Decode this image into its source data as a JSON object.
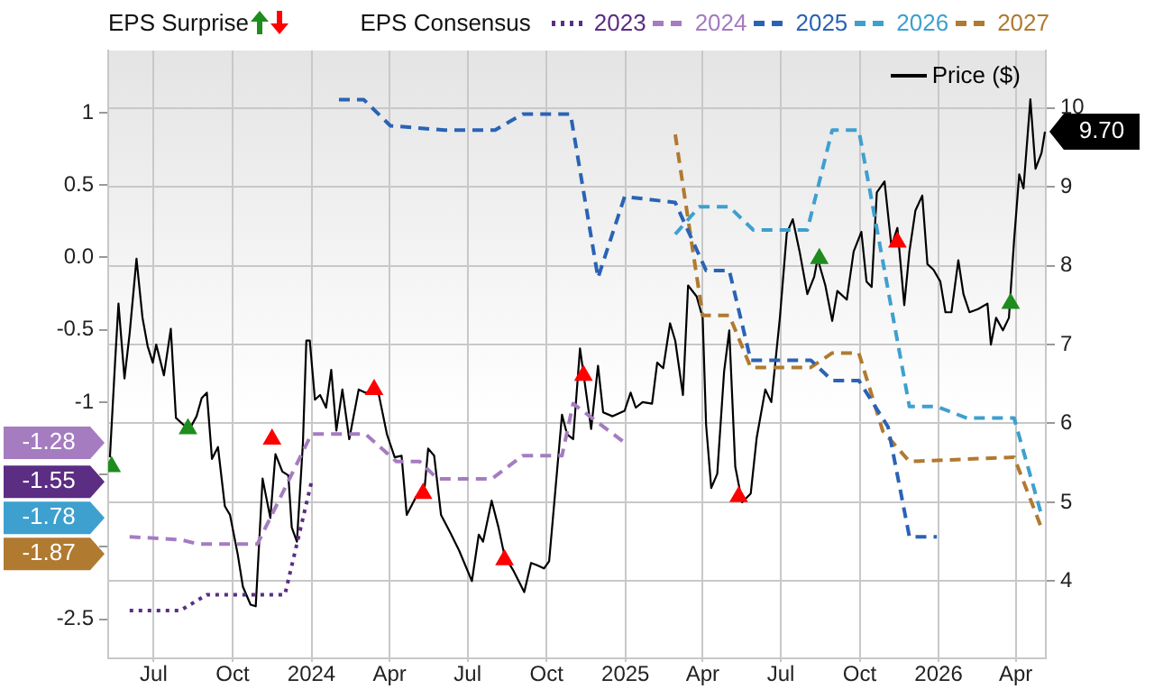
{
  "chart_data": {
    "type": "line",
    "legend": "top",
    "grid": true,
    "marker": "none",
    "annotations": [
      "EPS Surprise",
      "-1.28",
      "-1.55",
      "-1.78",
      "-1.87"
    ],
    "legend_title": "EPS Consensus",
    "xlim": [
      "2023-05-09",
      "2026-05-06"
    ],
    "xticks": [
      {
        "value": "2023-07-01",
        "label": "Jul"
      },
      {
        "value": "2023-10-01",
        "label": "Oct"
      },
      {
        "value": "2024-01-01",
        "label": "2024"
      },
      {
        "value": "2024-04-01",
        "label": "Apr"
      },
      {
        "value": "2024-07-01",
        "label": "Jul"
      },
      {
        "value": "2024-10-01",
        "label": "Oct"
      },
      {
        "value": "2025-01-01",
        "label": "2025"
      },
      {
        "value": "2025-04-01",
        "label": "Apr"
      },
      {
        "value": "2025-07-01",
        "label": "Jul"
      },
      {
        "value": "2025-10-01",
        "label": "Oct"
      },
      {
        "value": "2026-01-01",
        "label": "2026"
      },
      {
        "value": "2026-04-01",
        "label": "Apr"
      }
    ],
    "ylim": [
      -2.77,
      1.43
    ],
    "yticks": [
      1,
      0.5,
      {
        "value": 0,
        "label": "0.0"
      },
      -0.5,
      -1,
      {
        "value": -1.5,
        "label": null
      },
      {
        "value": -2,
        "label": null
      },
      -2.5
    ],
    "y2lim": [
      3.02,
      10.73
    ],
    "y2ticks": [
      4,
      5,
      6,
      7,
      8,
      9,
      10
    ],
    "series": [
      {
        "name": "2023",
        "color": "#5b2d83",
        "line_style": "dotted",
        "x": [
          "2023-06-03",
          "2023-08-01",
          "2023-09-01",
          "2023-12-01",
          "2023-12-11",
          "2024-01-01"
        ],
        "values": [
          -2.44,
          -2.44,
          -2.33,
          -2.33,
          -2.08,
          -1.55
        ]
      },
      {
        "name": "2024",
        "color": "#a57cc0",
        "line_style": "dashed",
        "x": [
          "2023-06-03",
          "2023-08-01",
          "2023-08-22",
          "2023-10-30",
          "2024-01-01",
          "2024-03-04",
          "2024-04-09",
          "2024-05-06",
          "2024-05-27",
          "2024-07-29",
          "2024-09-03",
          "2024-10-19",
          "2024-11-01",
          "2024-12-31"
        ],
        "values": [
          -1.93,
          -1.95,
          -1.98,
          -1.98,
          -1.22,
          -1.22,
          -1.41,
          -1.41,
          -1.53,
          -1.53,
          -1.37,
          -1.37,
          -1.01,
          -1.28
        ]
      },
      {
        "name": "2025",
        "color": "#2a63b5",
        "line_style": "dashed",
        "x": [
          "2024-02-02",
          "2024-03-02",
          "2024-04-02",
          "2024-06-04",
          "2024-08-02",
          "2024-09-03",
          "2024-10-29",
          "2024-11-30",
          "2024-12-31",
          "2025-02-28",
          "2025-04-05",
          "2025-05-02",
          "2025-05-27",
          "2025-08-05",
          "2025-08-30",
          "2025-09-30",
          "2025-11-03",
          "2025-11-28",
          "2025-12-30"
        ],
        "values": [
          1.09,
          1.09,
          0.91,
          0.88,
          0.88,
          0.99,
          0.99,
          -0.14,
          0.42,
          0.38,
          -0.09,
          -0.09,
          -0.71,
          -0.71,
          -0.85,
          -0.85,
          -1.17,
          -1.93,
          -1.93
        ]
      },
      {
        "name": "2026",
        "color": "#3ea0cf",
        "line_style": "dashed",
        "x": [
          "2025-02-28",
          "2025-03-28",
          "2025-05-02",
          "2025-05-30",
          "2025-08-01",
          "2025-08-30",
          "2025-09-30",
          "2025-11-28",
          "2025-12-30",
          "2026-02-03",
          "2026-03-30",
          "2026-05-01"
        ],
        "values": [
          0.16,
          0.35,
          0.35,
          0.19,
          0.19,
          0.88,
          0.88,
          -1.03,
          -1.03,
          -1.11,
          -1.11,
          -1.78
        ]
      },
      {
        "name": "2027",
        "color": "#b07a30",
        "line_style": "dashed",
        "x": [
          "2025-02-28",
          "2025-04-01",
          "2025-05-02",
          "2025-05-27",
          "2025-08-05",
          "2025-08-30",
          "2025-09-30",
          "2025-10-28",
          "2025-11-28",
          "2026-03-30",
          "2026-05-01"
        ],
        "values": [
          0.85,
          -0.4,
          -0.4,
          -0.76,
          -0.76,
          -0.66,
          -0.66,
          -1.2,
          -1.41,
          -1.38,
          -1.87
        ]
      },
      {
        "name": "Price ($)",
        "color": "#000000",
        "axis": "y2",
        "line_style": "solid",
        "x": [
          "2023-05-11",
          "2023-05-17",
          "2023-05-21",
          "2023-05-28",
          "2023-06-03",
          "2023-06-11",
          "2023-06-18",
          "2023-06-24",
          "2023-06-30",
          "2023-07-04",
          "2023-07-13",
          "2023-07-21",
          "2023-07-27",
          "2023-08-05",
          "2023-08-13",
          "2023-08-20",
          "2023-08-26",
          "2023-09-01",
          "2023-09-07",
          "2023-09-14",
          "2023-09-22",
          "2023-09-28",
          "2023-10-07",
          "2023-10-13",
          "2023-10-22",
          "2023-10-28",
          "2023-11-05",
          "2023-11-14",
          "2023-11-20",
          "2023-11-28",
          "2023-12-05",
          "2023-12-09",
          "2023-12-15",
          "2023-12-22",
          "2023-12-26",
          "2023-12-30",
          "2024-01-05",
          "2024-01-11",
          "2024-01-18",
          "2024-01-24",
          "2024-01-30",
          "2024-02-06",
          "2024-02-14",
          "2024-02-25",
          "2024-03-04",
          "2024-03-19",
          "2024-03-29",
          "2024-04-07",
          "2024-04-15",
          "2024-04-21",
          "2024-05-02",
          "2024-05-12",
          "2024-05-16",
          "2024-05-23",
          "2024-05-31",
          "2024-06-11",
          "2024-06-21",
          "2024-07-06",
          "2024-07-14",
          "2024-07-19",
          "2024-07-29",
          "2024-08-06",
          "2024-08-13",
          "2024-08-23",
          "2024-09-05",
          "2024-09-13",
          "2024-09-20",
          "2024-09-28",
          "2024-10-04",
          "2024-10-19",
          "2024-10-25",
          "2024-11-01",
          "2024-11-09",
          "2024-11-22",
          "2024-11-30",
          "2024-12-06",
          "2024-12-17",
          "2024-12-31",
          "2025-01-07",
          "2025-01-13",
          "2025-01-21",
          "2025-02-01",
          "2025-02-07",
          "2025-02-14",
          "2025-02-22",
          "2025-02-28",
          "2025-03-09",
          "2025-03-15",
          "2025-03-25",
          "2025-04-01",
          "2025-04-05",
          "2025-04-11",
          "2025-04-18",
          "2025-04-26",
          "2025-05-02",
          "2025-05-09",
          "2025-05-17",
          "2025-05-27",
          "2025-06-03",
          "2025-06-13",
          "2025-06-20",
          "2025-06-30",
          "2025-07-08",
          "2025-07-15",
          "2025-07-23",
          "2025-08-01",
          "2025-08-09",
          "2025-08-13",
          "2025-08-22",
          "2025-08-30",
          "2025-09-05",
          "2025-09-16",
          "2025-09-24",
          "2025-10-03",
          "2025-10-09",
          "2025-10-15",
          "2025-10-21",
          "2025-10-30",
          "2025-11-07",
          "2025-11-14",
          "2025-11-22",
          "2025-11-28",
          "2025-12-05",
          "2025-12-13",
          "2025-12-19",
          "2025-12-26",
          "2026-01-03",
          "2026-01-09",
          "2026-01-16",
          "2026-01-24",
          "2026-01-30",
          "2026-02-06",
          "2026-02-16",
          "2026-02-27",
          "2026-03-03",
          "2026-03-09",
          "2026-03-17",
          "2026-03-24",
          "2026-03-30",
          "2026-04-05",
          "2026-04-10",
          "2026-04-18",
          "2026-04-24",
          "2026-05-01",
          "2026-05-05"
        ],
        "values": [
          5.57,
          6.77,
          7.52,
          6.57,
          7.14,
          8.09,
          7.34,
          6.98,
          6.77,
          7.0,
          6.61,
          7.2,
          6.07,
          5.98,
          5.95,
          6.09,
          6.32,
          6.39,
          5.55,
          5.7,
          4.95,
          4.84,
          4.34,
          3.93,
          3.7,
          3.68,
          5.3,
          4.8,
          5.61,
          5.39,
          5.34,
          4.68,
          4.5,
          5.75,
          7.05,
          7.05,
          6.3,
          6.36,
          6.2,
          6.68,
          5.91,
          6.43,
          5.8,
          6.43,
          6.39,
          6.39,
          5.86,
          5.57,
          5.59,
          4.84,
          5.07,
          5.2,
          5.68,
          5.59,
          4.84,
          4.61,
          4.39,
          4.0,
          4.59,
          4.5,
          5.02,
          4.68,
          4.32,
          4.14,
          3.86,
          4.23,
          4.2,
          4.16,
          4.25,
          6.11,
          5.86,
          5.8,
          6.95,
          5.93,
          6.73,
          6.14,
          6.09,
          6.16,
          6.39,
          6.2,
          6.27,
          6.25,
          6.77,
          6.7,
          7.27,
          7.05,
          6.36,
          7.75,
          7.61,
          7.34,
          5.98,
          5.18,
          5.36,
          6.66,
          7.18,
          5.45,
          5.0,
          5.11,
          5.82,
          6.43,
          6.27,
          7.34,
          8.41,
          8.59,
          8.18,
          7.64,
          7.86,
          8.09,
          7.75,
          7.3,
          7.68,
          7.57,
          8.18,
          8.43,
          7.8,
          7.73,
          8.93,
          9.07,
          8.25,
          8.48,
          7.5,
          8.18,
          8.7,
          8.89,
          8.02,
          7.95,
          7.8,
          7.41,
          7.41,
          8.07,
          7.64,
          7.41,
          7.45,
          7.52,
          7.0,
          7.34,
          7.18,
          7.34,
          8.32,
          9.16,
          8.98,
          10.11,
          9.23,
          9.43,
          9.7
        ],
        "value_labels": [
          null,
          null,
          null,
          null,
          null,
          null,
          null,
          null,
          null,
          null,
          null,
          null,
          null,
          null,
          null,
          null,
          null,
          null,
          null,
          null,
          null,
          null,
          null,
          null,
          null,
          null,
          null,
          null,
          null,
          null,
          null,
          null,
          null,
          null,
          null,
          null,
          null,
          null,
          null,
          null,
          null,
          null,
          null,
          null,
          null,
          null,
          null,
          null,
          null,
          null,
          null,
          null,
          null,
          null,
          null,
          null,
          null,
          null,
          null,
          null,
          null,
          null,
          null,
          null,
          null,
          null,
          null,
          null,
          null,
          null,
          null,
          null,
          null,
          null,
          null,
          null,
          null,
          null,
          null,
          null,
          null,
          null,
          null,
          null,
          null,
          null,
          null,
          null,
          null,
          null,
          null,
          null,
          null,
          null,
          null,
          null,
          null,
          null,
          null,
          null,
          null,
          null,
          null,
          null,
          null,
          null,
          null,
          null,
          null,
          null,
          null,
          null,
          null,
          null,
          null,
          null,
          null,
          null,
          null,
          null,
          null,
          null,
          null,
          null,
          null,
          null,
          null,
          null,
          null,
          null,
          null,
          null,
          null,
          null,
          null,
          null,
          null,
          null,
          null,
          null,
          null,
          null,
          null,
          null,
          "9.70"
        ]
      },
      {
        "type": "scatter",
        "color": "#1e8c1e",
        "axis": "y2",
        "marker": "triangle",
        "x": [
          "2023-05-13",
          "2023-08-10",
          "2025-08-15",
          "2026-03-26"
        ],
        "values": [
          5.45,
          5.93,
          8.09,
          7.52
        ]
      },
      {
        "type": "scatter",
        "color": "#ff0000",
        "axis": "y2",
        "marker": "triangle",
        "x": [
          "2023-11-16",
          "2024-03-14",
          "2024-05-10",
          "2024-08-13",
          "2024-11-13",
          "2025-05-13",
          "2025-11-14"
        ],
        "values": [
          5.8,
          6.43,
          5.11,
          4.27,
          6.61,
          5.07,
          8.3
        ]
      }
    ]
  }
}
